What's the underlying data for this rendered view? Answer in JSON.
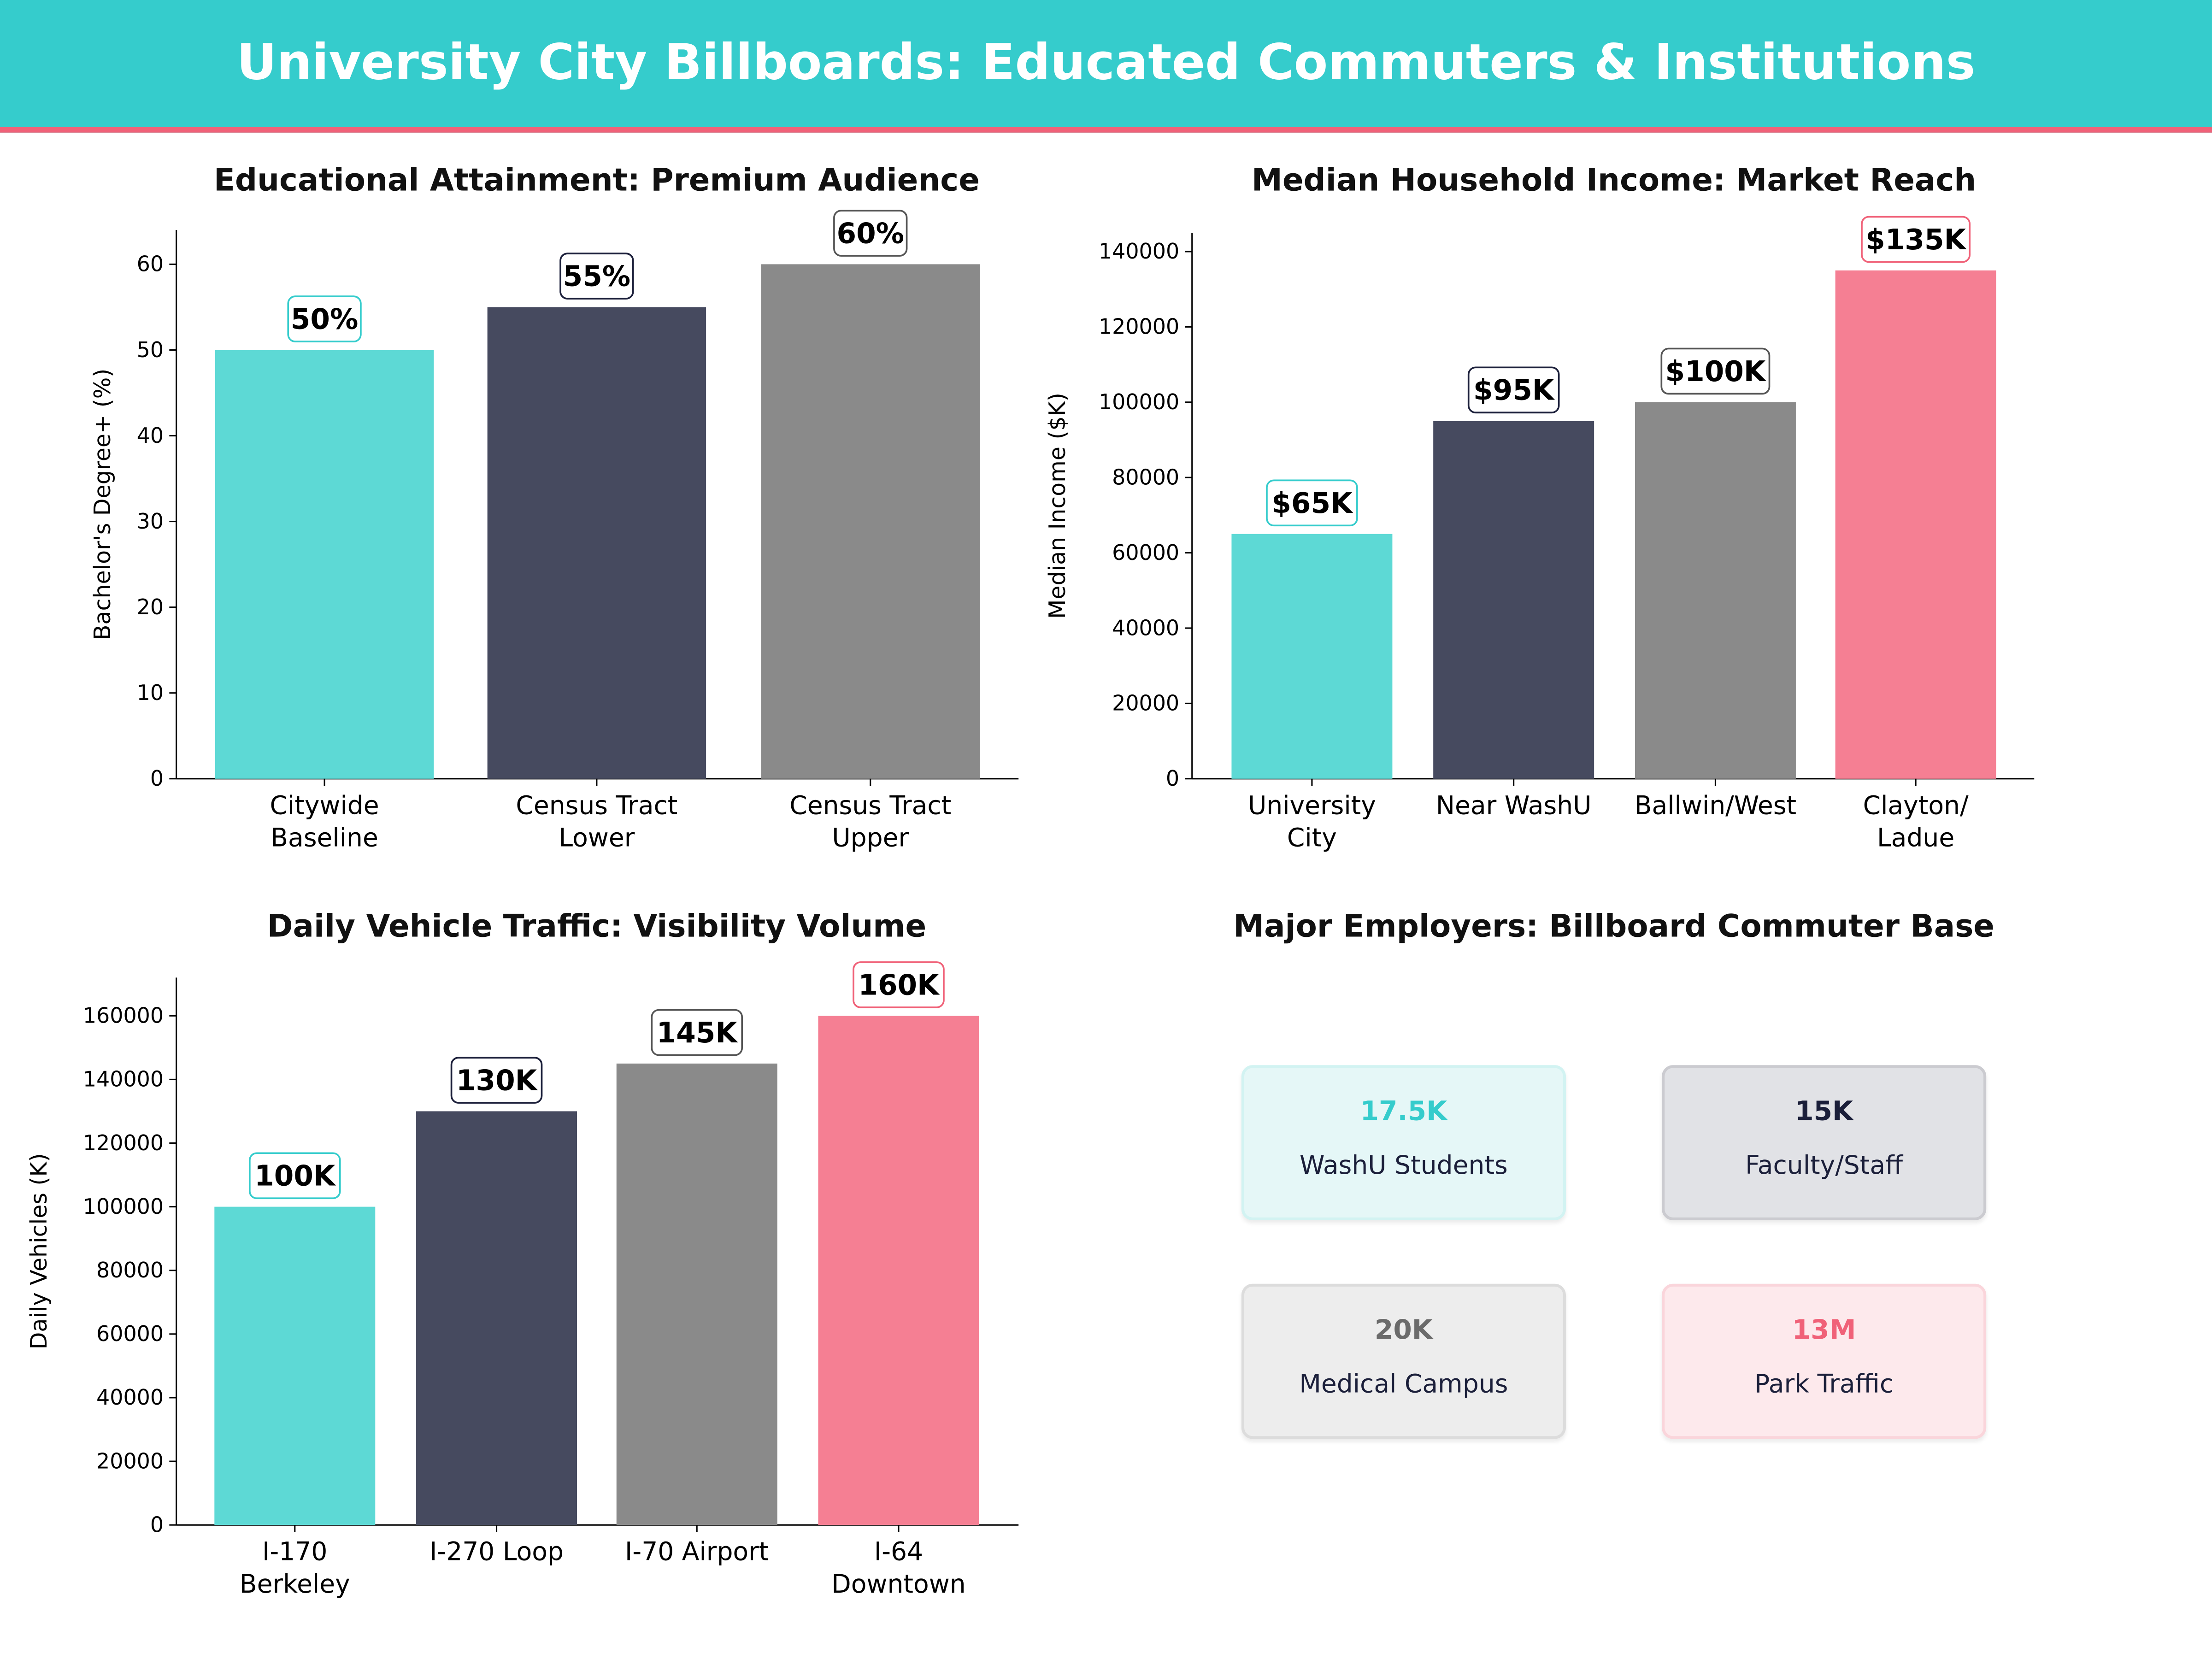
{
  "header": {
    "title": "University City Billboards: Educated Commuters & Institutions",
    "background": "#35CCCC",
    "accent_line": "#F06178"
  },
  "chart_data": [
    {
      "type": "bar",
      "title": "Educational Attainment: Premium Audience",
      "xlabel": "",
      "ylabel": "Bachelor's Degree+ (%)",
      "ylim": [
        0,
        64
      ],
      "yticks": [
        0,
        10,
        20,
        30,
        40,
        50,
        60
      ],
      "categories": [
        "Citywide\nBaseline",
        "Census Tract\nLower",
        "Census Tract\nUpper"
      ],
      "values": [
        50,
        55,
        60
      ],
      "data_labels": [
        "50%",
        "55%",
        "60%"
      ],
      "colors": [
        "#5DD9D5",
        "#464A5F",
        "#8A8A8A"
      ],
      "label_borders": [
        "#35CCCC",
        "#1b1f3a",
        "#555555"
      ],
      "grid": false
    },
    {
      "type": "bar",
      "title": "Median Household Income: Market Reach",
      "xlabel": "",
      "ylabel": "Median Income ($K)",
      "ylim": [
        0,
        145000
      ],
      "yticks": [
        0,
        20000,
        40000,
        60000,
        80000,
        100000,
        120000,
        140000
      ],
      "categories": [
        "University\nCity",
        "Near WashU",
        "Ballwin/West",
        "Clayton/\nLadue"
      ],
      "values": [
        65000,
        95000,
        100000,
        135000
      ],
      "data_labels": [
        "$65K",
        "$95K",
        "$100K",
        "$135K"
      ],
      "colors": [
        "#5DD9D5",
        "#464A5F",
        "#8A8A8A",
        "#F57F93"
      ],
      "label_borders": [
        "#35CCCC",
        "#1b1f3a",
        "#555555",
        "#F06178"
      ],
      "grid": false
    },
    {
      "type": "bar",
      "title": "Daily Vehicle Traffic: Visibility Volume",
      "xlabel": "",
      "ylabel": "Daily Vehicles (K)",
      "ylim": [
        0,
        172000
      ],
      "yticks": [
        0,
        20000,
        40000,
        60000,
        80000,
        100000,
        120000,
        140000,
        160000
      ],
      "categories": [
        "I-170\nBerkeley",
        "I-270 Loop",
        "I-70 Airport",
        "I-64\nDowntown"
      ],
      "values": [
        100000,
        130000,
        145000,
        160000
      ],
      "data_labels": [
        "100K",
        "130K",
        "145K",
        "160K"
      ],
      "colors": [
        "#5DD9D5",
        "#464A5F",
        "#8A8A8A",
        "#F57F93"
      ],
      "label_borders": [
        "#35CCCC",
        "#1b1f3a",
        "#555555",
        "#F06178"
      ],
      "grid": false
    }
  ],
  "employers": {
    "title": "Major Employers: Billboard Commuter Base",
    "cards": [
      {
        "value": "17.5K",
        "label": "WashU Students",
        "value_color": "#35CCCC",
        "bg": "#E5F7F7",
        "border": "#D2F3F2"
      },
      {
        "value": "15K",
        "label": "Faculty/Staff",
        "value_color": "#1b1f3a",
        "bg": "#E1E2E6",
        "border": "#CBCBD0"
      },
      {
        "value": "20K",
        "label": "Medical Campus",
        "value_color": "#6b6b6b",
        "bg": "#EDEDED",
        "border": "#DCDCDC"
      },
      {
        "value": "13M",
        "label": "Park Traffic",
        "value_color": "#F06178",
        "bg": "#FDE9EC",
        "border": "#FAD5DB"
      }
    ]
  }
}
